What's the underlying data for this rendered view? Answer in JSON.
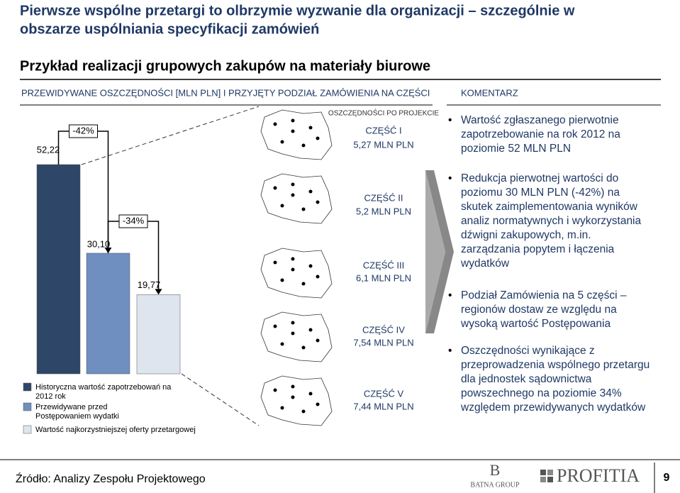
{
  "header": {
    "title_line1": "Pierwsze wspólne przetargi to olbrzymie wyzwanie dla organizacji – szczególnie w",
    "title_line2": "obszarze uspólniania specyfikacji zamówień",
    "subtitle": "Przykład realizacji grupowych zakupów na materiały biurowe"
  },
  "left_heading": "PRZEWIDYWANE OSZCZĘDNOŚCI [MLN PLN] I PRZYJĘTY PODZIAŁ ZAMÓWIENIA NA CZĘŚCI",
  "right_heading": "KOMENTARZ",
  "chart_data": {
    "type": "bar",
    "series": [
      {
        "name": "Historyczna wartość zapotrzebowań na 2012 rok",
        "color": "#2e4668",
        "values": [
          52.22
        ],
        "value_labels": [
          "52,22"
        ]
      },
      {
        "name": "Przewidywane przed Postępowaniem wydatki",
        "color": "#6f8fc0",
        "values": [
          30.1
        ],
        "value_labels": [
          "30,10"
        ]
      },
      {
        "name": "Wartość najkorzystniejszej oferty przetargowej",
        "color": "#dfe5ee",
        "values": [
          19.77
        ],
        "value_labels": [
          "19,77"
        ]
      }
    ],
    "annotations": [
      "-42%",
      "-34%"
    ]
  },
  "parts": {
    "heading": "OSZCZĘDNOŚCI PO PROJEKCIE",
    "items": [
      {
        "name": "CZĘŚĆ I",
        "value": "5,27 MLN PLN"
      },
      {
        "name": "CZĘŚĆ II",
        "value": "5,2 MLN PLN"
      },
      {
        "name": "CZĘŚĆ III",
        "value": "6,1 MLN PLN"
      },
      {
        "name": "CZĘŚĆ IV",
        "value": "7,54 MLN PLN"
      },
      {
        "name": "CZĘŚĆ V",
        "value": "7,44 MLN PLN"
      }
    ]
  },
  "comments": [
    "Wartość zgłaszanego pierwotnie zapotrzebowanie na rok 2012 na poziomie 52 MLN PLN",
    "Redukcja pierwotnej wartości do poziomu 30 MLN PLN (-42%) na skutek zaimplementowania wyników analiz normatywnych i wykorzystania dźwigni zakupowych, m.in. zarządzania popytem i łączenia wydatków",
    "Podział Zamówienia na 5 części – regionów dostaw ze względu na wysoką wartość Postępowania",
    "Oszczędności wynikające z przeprowadzenia wspólnego przetargu dla jednostek sądownictwa powszechnego na poziomie 34% względem przewidywanych wydatków"
  ],
  "footer": {
    "source": "Źródło: Analizy Zespołu Projektowego",
    "logo1_initial": "B",
    "logo1": "BATNA GROUP",
    "logo2": "PROFITIA",
    "page": "9"
  }
}
